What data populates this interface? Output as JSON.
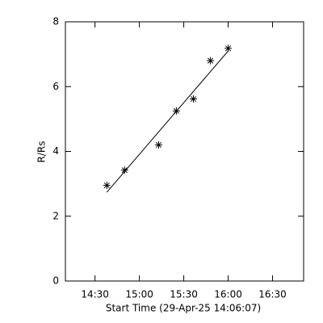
{
  "chart_data": {
    "type": "scatter",
    "x_label": "Start Time (29-Apr-25 14:06:07)",
    "y_label": "R/Rs",
    "x": [
      878,
      890,
      913,
      925,
      936.5,
      948,
      960
    ],
    "values": [
      2.95,
      3.42,
      4.2,
      5.25,
      5.62,
      6.8,
      7.18
    ],
    "fit_x": [
      878,
      960
    ],
    "fit_values": [
      2.74,
      7.1
    ],
    "color": "#000000",
    "xlim": [
      850,
      1011
    ],
    "xticks": [
      {
        "value": 870,
        "label": "14:30"
      },
      {
        "value": 900,
        "label": "15:00"
      },
      {
        "value": 930,
        "label": "15:30"
      },
      {
        "value": 960,
        "label": "16:00"
      },
      {
        "value": 990,
        "label": "16:30"
      }
    ],
    "ylim": [
      0,
      8
    ],
    "yticks": [
      0,
      2,
      4,
      6,
      8
    ]
  }
}
